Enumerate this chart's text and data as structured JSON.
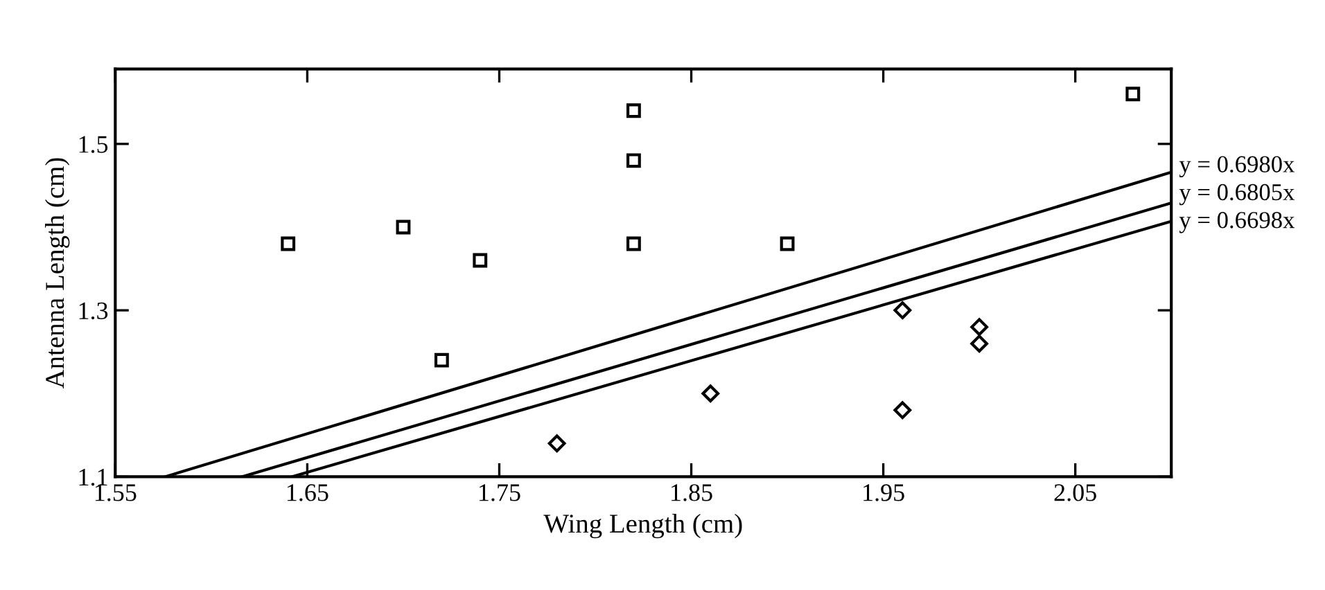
{
  "chart_data": {
    "type": "scatter",
    "xlabel": "Wing Length (cm)",
    "ylabel": "Antenna Length (cm)",
    "xlim": [
      1.55,
      2.1
    ],
    "ylim": [
      1.1,
      1.59
    ],
    "xticks": [
      1.55,
      1.65,
      1.75,
      1.85,
      1.95,
      2.05
    ],
    "yticks": [
      1.1,
      1.3,
      1.5
    ],
    "grid": false,
    "series": [
      {
        "type": "scatter",
        "marker": "square",
        "color": "#000000",
        "x": [
          1.64,
          1.7,
          1.74,
          1.72,
          1.82,
          1.82,
          1.82,
          1.9,
          2.08
        ],
        "values": [
          1.38,
          1.4,
          1.36,
          1.24,
          1.54,
          1.48,
          1.38,
          1.38,
          1.56
        ]
      },
      {
        "type": "scatter",
        "marker": "diamond",
        "color": "#000000",
        "x": [
          1.78,
          1.86,
          1.96,
          1.96,
          2.0,
          2.0
        ],
        "values": [
          1.14,
          1.2,
          1.3,
          1.18,
          1.28,
          1.26
        ]
      },
      {
        "type": "line",
        "name": "y = 0.6980x",
        "color": "#000000",
        "marker": "none",
        "line_style": "solid",
        "x": [
          1.576,
          2.1
        ],
        "values": [
          1.1,
          1.466
        ]
      },
      {
        "type": "line",
        "name": "y = 0.6805x",
        "color": "#000000",
        "marker": "none",
        "line_style": "solid",
        "x": [
          1.616,
          2.1
        ],
        "values": [
          1.1,
          1.429
        ]
      },
      {
        "type": "line",
        "name": "y = 0.6698x",
        "color": "#000000",
        "marker": "none",
        "line_style": "solid",
        "x": [
          1.642,
          2.1
        ],
        "values": [
          1.1,
          1.407
        ]
      }
    ]
  }
}
